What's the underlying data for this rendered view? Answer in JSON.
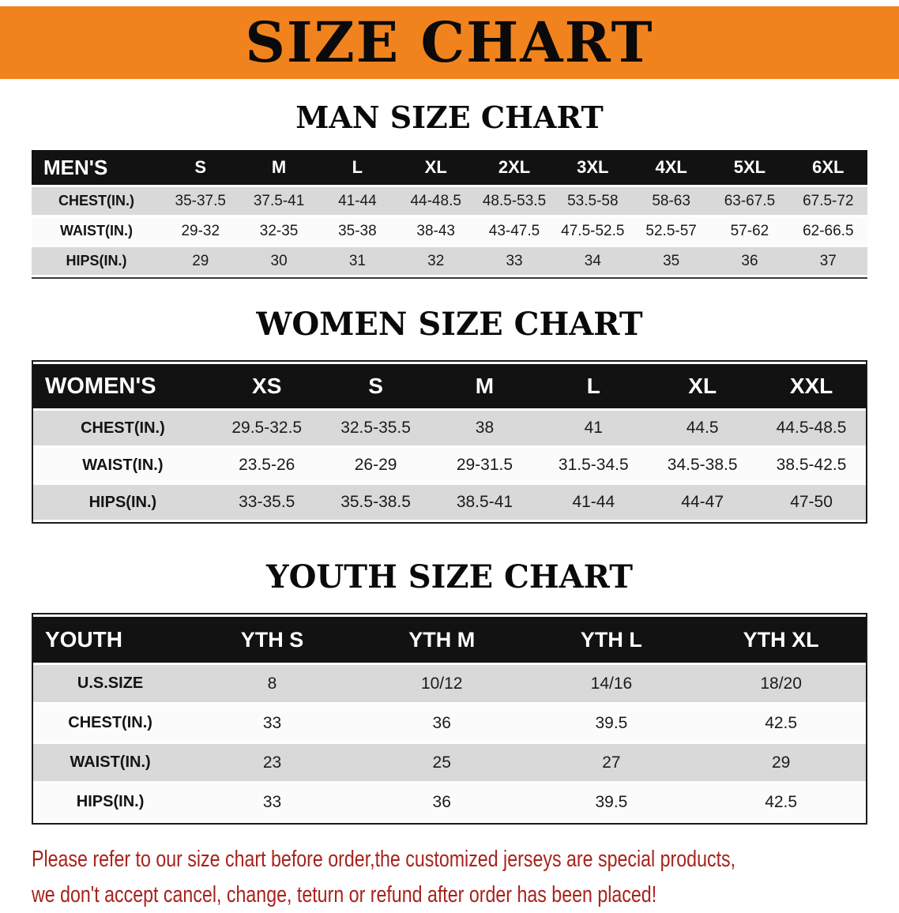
{
  "banner": {
    "title": "SIZE CHART",
    "bg_color": "#f1831e",
    "text_color": "#0a0a0a"
  },
  "sections": [
    {
      "heading": "MAN SIZE CHART",
      "table": {
        "header": [
          "MEN'S",
          "S",
          "M",
          "L",
          "XL",
          "2XL",
          "3XL",
          "4XL",
          "5XL",
          "6XL"
        ],
        "rows": [
          [
            "CHEST(IN.)",
            "35-37.5",
            "37.5-41",
            "41-44",
            "44-48.5",
            "48.5-53.5",
            "53.5-58",
            "58-63",
            "63-67.5",
            "67.5-72"
          ],
          [
            "WAIST(IN.)",
            "29-32",
            "32-35",
            "35-38",
            "38-43",
            "43-47.5",
            "47.5-52.5",
            "52.5-57",
            "57-62",
            "62-66.5"
          ],
          [
            "HIPS(IN.)",
            "29",
            "30",
            "31",
            "32",
            "33",
            "34",
            "35",
            "36",
            "37"
          ]
        ]
      }
    },
    {
      "heading": "WOMEN SIZE CHART",
      "table": {
        "header": [
          "WOMEN'S",
          "XS",
          "S",
          "M",
          "L",
          "XL",
          "XXL"
        ],
        "rows": [
          [
            "CHEST(IN.)",
            "29.5-32.5",
            "32.5-35.5",
            "38",
            "41",
            "44.5",
            "44.5-48.5"
          ],
          [
            "WAIST(IN.)",
            "23.5-26",
            "26-29",
            "29-31.5",
            "31.5-34.5",
            "34.5-38.5",
            "38.5-42.5"
          ],
          [
            "HIPS(IN.)",
            "33-35.5",
            "35.5-38.5",
            "38.5-41",
            "41-44",
            "44-47",
            "47-50"
          ]
        ]
      }
    },
    {
      "heading": "YOUTH SIZE CHART",
      "table": {
        "header": [
          "YOUTH",
          "YTH S",
          "YTH M",
          "YTH L",
          "YTH XL"
        ],
        "rows": [
          [
            "U.S.SIZE",
            "8",
            "10/12",
            "14/16",
            "18/20"
          ],
          [
            "CHEST(IN.)",
            "33",
            "36",
            "39.5",
            "42.5"
          ],
          [
            "WAIST(IN.)",
            "23",
            "25",
            "27",
            "29"
          ],
          [
            "HIPS(IN.)",
            "33",
            "36",
            "39.5",
            "42.5"
          ]
        ]
      }
    }
  ],
  "disclaimer": {
    "line1": "Please refer to our size chart before order,the customized jerseys are special products,",
    "line2": "we don't accept cancel, change, teturn or refund after order has been placed!",
    "color": "#a8221c"
  }
}
